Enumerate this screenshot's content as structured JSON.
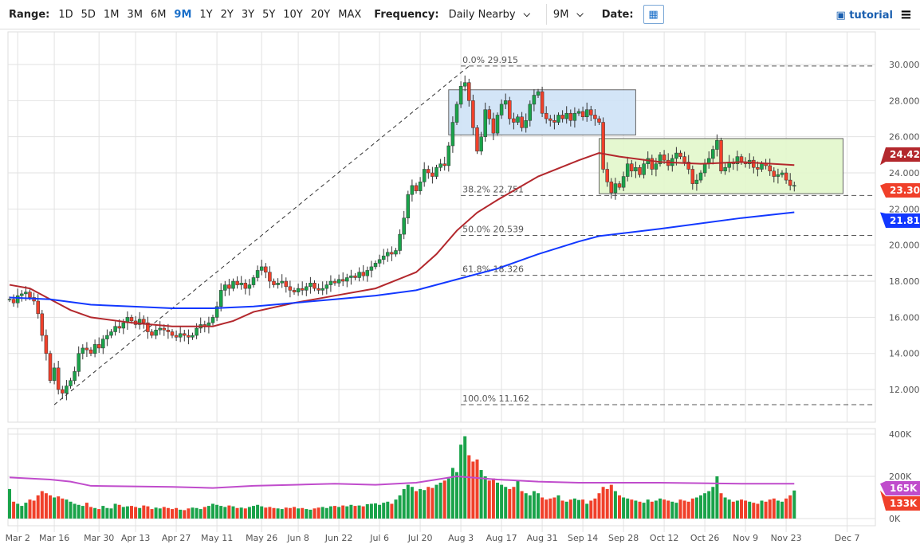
{
  "toolbar": {
    "range_label": "Range:",
    "ranges": [
      "1D",
      "5D",
      "1M",
      "3M",
      "6M",
      "9M",
      "1Y",
      "2Y",
      "3Y",
      "5Y",
      "10Y",
      "20Y",
      "MAX"
    ],
    "active_range": "9M",
    "frequency_label": "Frequency:",
    "frequency_value": "Daily Nearby",
    "period_value": "9M",
    "date_label": "Date:",
    "tutorial_label": "tutorial",
    "calendar_icon": "calendar-icon",
    "menu_icon": "hamburger-icon"
  },
  "chart_data": {
    "type": "candlestick",
    "colors": {
      "up": "#1aa34a",
      "down": "#f0402a",
      "ma_red": "#b3282d",
      "ma_blue": "#1238ff",
      "vol_ma": "#c04ccc",
      "box_blue": "#cfe3f7",
      "box_green": "#e3f8cc"
    },
    "price_axis": {
      "ylim": [
        11,
        31
      ],
      "ticks": [
        "12.000",
        "14.000",
        "16.000",
        "18.000",
        "20.000",
        "22.000",
        "24.000",
        "26.000",
        "28.000",
        "30.000"
      ]
    },
    "volume_axis": {
      "ticks": [
        "0K",
        "200K",
        "400K"
      ]
    },
    "x_ticks": [
      {
        "label": "Mar 2",
        "i": 2
      },
      {
        "label": "Mar 16",
        "i": 11
      },
      {
        "label": "Mar 30",
        "i": 22
      },
      {
        "label": "Apr 13",
        "i": 31
      },
      {
        "label": "Apr 27",
        "i": 41
      },
      {
        "label": "May 11",
        "i": 51
      },
      {
        "label": "May 26",
        "i": 62
      },
      {
        "label": "Jun 8",
        "i": 71
      },
      {
        "label": "Jun 22",
        "i": 81
      },
      {
        "label": "Jul 6",
        "i": 91
      },
      {
        "label": "Jul 20",
        "i": 101
      },
      {
        "label": "Aug 3",
        "i": 111
      },
      {
        "label": "Aug 17",
        "i": 121
      },
      {
        "label": "Aug 31",
        "i": 131
      },
      {
        "label": "Sep 14",
        "i": 141
      },
      {
        "label": "Sep 28",
        "i": 151
      },
      {
        "label": "Oct 12",
        "i": 161
      },
      {
        "label": "Oct 26",
        "i": 171
      },
      {
        "label": "Nov 9",
        "i": 181
      },
      {
        "label": "Nov 23",
        "i": 191
      },
      {
        "label": "Dec 7",
        "i": 206
      }
    ],
    "closes": [
      17.0,
      16.8,
      17.2,
      17.3,
      17.4,
      17.1,
      16.9,
      16.2,
      15.0,
      14.0,
      12.5,
      13.2,
      12.0,
      11.8,
      12.2,
      12.5,
      13.0,
      14.0,
      14.3,
      14.2,
      14.0,
      14.5,
      14.3,
      14.8,
      15.0,
      15.2,
      15.5,
      15.4,
      15.7,
      16.0,
      15.8,
      15.6,
      15.9,
      15.7,
      15.2,
      15.0,
      15.3,
      15.4,
      15.3,
      15.2,
      15.0,
      14.9,
      15.1,
      15.0,
      14.9,
      15.0,
      15.4,
      15.6,
      15.5,
      15.7,
      16.0,
      16.6,
      17.5,
      17.8,
      17.6,
      18.0,
      17.8,
      17.9,
      17.6,
      17.8,
      18.2,
      18.6,
      18.8,
      18.5,
      18.0,
      17.8,
      17.9,
      18.0,
      17.7,
      17.5,
      17.4,
      17.6,
      17.5,
      17.7,
      17.9,
      17.6,
      17.5,
      17.6,
      17.8,
      18.0,
      17.9,
      18.1,
      18.0,
      18.2,
      18.3,
      18.2,
      18.5,
      18.3,
      18.6,
      18.8,
      19.0,
      19.2,
      19.4,
      19.6,
      19.5,
      19.7,
      20.6,
      21.5,
      22.8,
      23.3,
      23.0,
      23.5,
      24.2,
      24.0,
      23.8,
      24.3,
      24.5,
      24.4,
      25.5,
      26.8,
      27.8,
      28.8,
      29.0,
      28.0,
      26.5,
      25.2,
      26.0,
      27.5,
      27.0,
      26.2,
      27.2,
      27.8,
      28.0,
      27.0,
      26.8,
      27.1,
      26.5,
      26.9,
      27.8,
      28.3,
      28.5,
      27.3,
      27.0,
      26.9,
      26.8,
      27.2,
      27.0,
      27.3,
      26.9,
      27.3,
      27.4,
      27.1,
      27.5,
      27.2,
      27.0,
      26.8,
      24.2,
      23.5,
      22.9,
      23.4,
      23.2,
      23.8,
      24.5,
      24.1,
      24.3,
      23.9,
      24.5,
      24.8,
      24.2,
      24.5,
      25.0,
      24.7,
      24.4,
      24.8,
      25.1,
      24.9,
      24.6,
      24.2,
      23.4,
      23.6,
      24.0,
      24.5,
      24.8,
      25.3,
      25.8,
      24.1,
      24.3,
      24.6,
      24.5,
      24.9,
      24.6,
      24.5,
      24.7,
      24.3,
      24.2,
      24.5,
      24.4,
      24.1,
      23.8,
      23.9,
      24.0,
      23.6,
      23.3,
      23.305
    ],
    "volumes_k": [
      140,
      80,
      70,
      60,
      75,
      90,
      85,
      110,
      130,
      120,
      110,
      100,
      105,
      95,
      90,
      80,
      70,
      65,
      60,
      75,
      55,
      50,
      45,
      60,
      50,
      48,
      70,
      65,
      55,
      58,
      60,
      55,
      50,
      62,
      58,
      45,
      52,
      48,
      55,
      50,
      45,
      50,
      42,
      40,
      48,
      52,
      50,
      45,
      55,
      60,
      70,
      65,
      60,
      55,
      62,
      58,
      50,
      52,
      48,
      55,
      60,
      65,
      58,
      52,
      55,
      50,
      48,
      45,
      52,
      50,
      55,
      48,
      50,
      45,
      42,
      48,
      52,
      55,
      50,
      58,
      60,
      55,
      62,
      58,
      65,
      60,
      62,
      58,
      68,
      70,
      72,
      65,
      75,
      80,
      70,
      90,
      110,
      140,
      160,
      150,
      130,
      140,
      135,
      150,
      145,
      160,
      170,
      180,
      190,
      240,
      220,
      350,
      390,
      300,
      270,
      280,
      230,
      200,
      180,
      190,
      170,
      160,
      150,
      140,
      150,
      180,
      130,
      120,
      110,
      130,
      120,
      100,
      90,
      95,
      100,
      110,
      85,
      80,
      90,
      95,
      88,
      90,
      70,
      85,
      95,
      120,
      150,
      140,
      160,
      130,
      110,
      100,
      95,
      90,
      85,
      80,
      75,
      90,
      80,
      85,
      95,
      90,
      85,
      80,
      75,
      90,
      85,
      80,
      95,
      100,
      110,
      120,
      130,
      150,
      200,
      120,
      100,
      90,
      80,
      85,
      90,
      85,
      80,
      75,
      70,
      85,
      80,
      90,
      95,
      85,
      80,
      95,
      110,
      133
    ],
    "ma_red": [
      [
        0,
        17.8
      ],
      [
        5,
        17.6
      ],
      [
        10,
        17.0
      ],
      [
        15,
        16.4
      ],
      [
        20,
        16.0
      ],
      [
        30,
        15.7
      ],
      [
        40,
        15.5
      ],
      [
        50,
        15.5
      ],
      [
        55,
        15.8
      ],
      [
        60,
        16.3
      ],
      [
        70,
        16.8
      ],
      [
        80,
        17.2
      ],
      [
        90,
        17.6
      ],
      [
        100,
        18.5
      ],
      [
        105,
        19.5
      ],
      [
        110,
        20.8
      ],
      [
        115,
        21.8
      ],
      [
        120,
        22.5
      ],
      [
        130,
        23.8
      ],
      [
        140,
        24.7
      ],
      [
        145,
        25.1
      ],
      [
        150,
        24.9
      ],
      [
        160,
        24.6
      ],
      [
        170,
        24.5
      ],
      [
        180,
        24.6
      ],
      [
        193,
        24.429
      ]
    ],
    "ma_blue": [
      [
        0,
        17.1
      ],
      [
        10,
        17.0
      ],
      [
        20,
        16.7
      ],
      [
        30,
        16.6
      ],
      [
        40,
        16.5
      ],
      [
        50,
        16.5
      ],
      [
        60,
        16.6
      ],
      [
        70,
        16.8
      ],
      [
        80,
        17.0
      ],
      [
        90,
        17.2
      ],
      [
        100,
        17.5
      ],
      [
        110,
        18.1
      ],
      [
        120,
        18.7
      ],
      [
        130,
        19.5
      ],
      [
        140,
        20.2
      ],
      [
        145,
        20.5
      ],
      [
        160,
        20.9
      ],
      [
        180,
        21.5
      ],
      [
        193,
        21.817
      ]
    ],
    "vol_ma": [
      [
        0,
        195
      ],
      [
        10,
        185
      ],
      [
        15,
        175
      ],
      [
        20,
        155
      ],
      [
        40,
        150
      ],
      [
        50,
        145
      ],
      [
        60,
        155
      ],
      [
        70,
        160
      ],
      [
        80,
        165
      ],
      [
        90,
        160
      ],
      [
        100,
        170
      ],
      [
        110,
        200
      ],
      [
        120,
        185
      ],
      [
        130,
        175
      ],
      [
        140,
        170
      ],
      [
        160,
        170
      ],
      [
        180,
        165
      ],
      [
        193,
        165
      ]
    ],
    "fib_levels": [
      {
        "label": "0.0% 29.915",
        "value": 29.915
      },
      {
        "label": "38.2% 22.751",
        "value": 22.751
      },
      {
        "label": "50.0% 20.539",
        "value": 20.539
      },
      {
        "label": "61.8% 18.326",
        "value": 18.326
      },
      {
        "label": "100.0% 11.162",
        "value": 11.162
      }
    ],
    "fib_start_i": 111,
    "trendline": {
      "from": [
        11,
        11.162
      ],
      "to": [
        113,
        29.915
      ]
    },
    "boxes": [
      {
        "name": "blue",
        "i0": 108,
        "i1": 154,
        "top": 28.6,
        "bottom": 26.1
      },
      {
        "name": "green",
        "i0": 145,
        "i1": 205,
        "top": 25.9,
        "bottom": 22.85
      }
    ],
    "badges": [
      {
        "text": "24.429",
        "value": 24.429,
        "color": "#b3282d",
        "panel": "price"
      },
      {
        "text": "23.305",
        "value": 23.305,
        "color": "#f0402a",
        "panel": "price"
      },
      {
        "text": "21.817",
        "value": 21.817,
        "color": "#1238ff",
        "panel": "price"
      },
      {
        "text": "165K",
        "value": 165,
        "color": "#c04ccc",
        "panel": "volume"
      },
      {
        "text": "133K",
        "value": 133,
        "color": "#f0402a",
        "panel": "volume"
      }
    ]
  }
}
